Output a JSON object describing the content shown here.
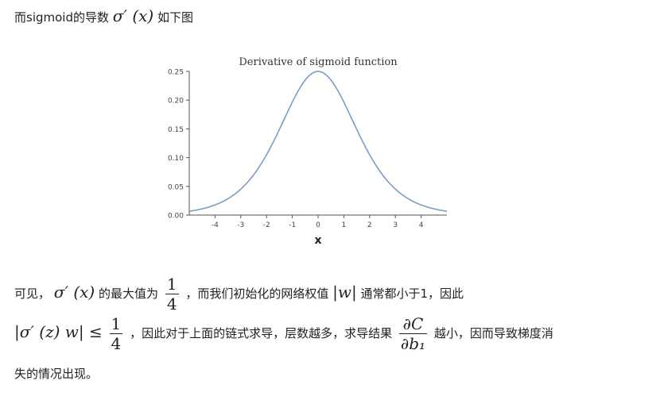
{
  "intro": {
    "text_before": "而sigmoid的导数",
    "math": "σ′ (x)",
    "text_after": "如下图"
  },
  "chart_data": {
    "type": "line",
    "title": "Derivative of sigmoid function",
    "xlabel": "x",
    "ylabel": "",
    "xlim": [
      -5,
      5
    ],
    "ylim": [
      0,
      0.25
    ],
    "x_ticks": [
      -4,
      -3,
      -2,
      -1,
      0,
      1,
      2,
      3,
      4
    ],
    "y_ticks": [
      0.0,
      0.05,
      0.1,
      0.15,
      0.2,
      0.25
    ],
    "grid": false,
    "line_color": "#7a9cc6",
    "series": [
      {
        "x": [
          -5,
          -4.5,
          -4,
          -3.5,
          -3,
          -2.5,
          -2,
          -1.5,
          -1,
          -0.5,
          0,
          0.5,
          1,
          1.5,
          2,
          2.5,
          3,
          3.5,
          4,
          4.5,
          5
        ],
        "values": [
          0.0066,
          0.0109,
          0.0177,
          0.0285,
          0.0452,
          0.0701,
          0.105,
          0.1491,
          0.1966,
          0.235,
          0.25,
          0.235,
          0.1966,
          0.1491,
          0.105,
          0.0701,
          0.0452,
          0.0285,
          0.0177,
          0.0109,
          0.0066
        ]
      }
    ]
  },
  "para1": {
    "text1": "可见，",
    "math1": "σ′ (x)",
    "text2": "的最大值为",
    "frac_num": "1",
    "frac_den": "4",
    "text3": "，而我们初始化的网络权值",
    "math2": "|w|",
    "text4": "通常都小于1，因此"
  },
  "para2": {
    "math1": "|σ′ (z) w| ≤",
    "frac1_num": "1",
    "frac1_den": "4",
    "text1": "，因此对于上面的链式求导，层数越多，求导结果",
    "frac2_num": "∂C",
    "frac2_den": "∂b₁",
    "text2": "越小，因而导致梯度消"
  },
  "para3": {
    "text": "失的情况出现。"
  }
}
